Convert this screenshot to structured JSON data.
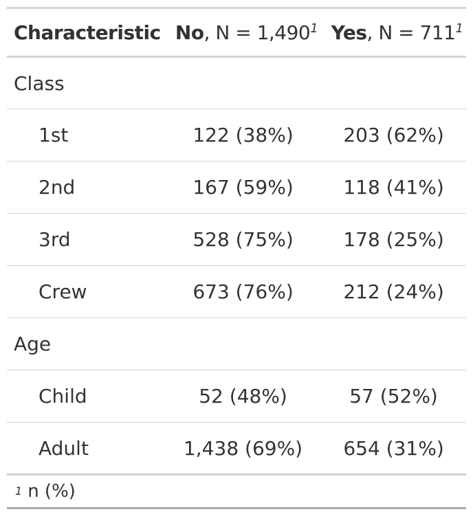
{
  "header": {
    "characteristic": "Characteristic",
    "no_label": "No",
    "no_n": ", N = 1,490",
    "yes_label": "Yes",
    "yes_n": ", N = 711",
    "footnote_marker": "1"
  },
  "groups": [
    {
      "label": "Class",
      "rows": [
        {
          "label": "1st",
          "no": "122 (38%)",
          "yes": "203 (62%)"
        },
        {
          "label": "2nd",
          "no": "167 (59%)",
          "yes": "118 (41%)"
        },
        {
          "label": "3rd",
          "no": "528 (75%)",
          "yes": "178 (25%)"
        },
        {
          "label": "Crew",
          "no": "673 (76%)",
          "yes": "212 (24%)"
        }
      ]
    },
    {
      "label": "Age",
      "rows": [
        {
          "label": "Child",
          "no": "52 (48%)",
          "yes": "57 (52%)"
        },
        {
          "label": "Adult",
          "no": "1,438 (69%)",
          "yes": "654 (31%)"
        }
      ]
    }
  ],
  "footnote": {
    "marker": "1",
    "text": "n (%)"
  }
}
